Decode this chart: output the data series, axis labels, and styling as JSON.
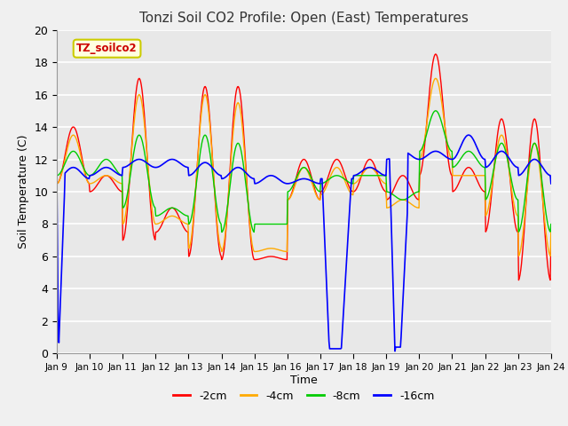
{
  "title": "Tonzi Soil CO2 Profile: Open (East) Temperatures",
  "xlabel": "Time",
  "ylabel": "Soil Temperature (C)",
  "ylim": [
    0,
    20
  ],
  "xlim": [
    0,
    15
  ],
  "x_tick_labels": [
    "Jan 9",
    "Jan 10",
    "Jan 11",
    "Jan 12",
    "Jan 13",
    "Jan 14",
    "Jan 15",
    "Jan 16",
    "Jan 17",
    "Jan 18",
    "Jan 19",
    "Jan 20",
    "Jan 21",
    "Jan 22",
    "Jan 23",
    "Jan 24"
  ],
  "legend_label": "TZ_soilco2",
  "series_labels": [
    "-2cm",
    "-4cm",
    "-8cm",
    "-16cm"
  ],
  "series_colors": [
    "#ff0000",
    "#ffaa00",
    "#00cc00",
    "#0000ff"
  ],
  "bg_color": "#e8e8e8",
  "fig_bg_color": "#f0f0f0",
  "legend_box_color": "#ffffe0",
  "legend_box_edge": "#cccc00"
}
